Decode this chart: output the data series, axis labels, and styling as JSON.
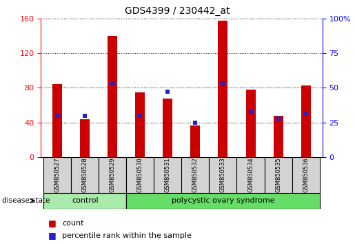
{
  "title": "GDS4399 / 230442_at",
  "samples": [
    "GSM850527",
    "GSM850528",
    "GSM850529",
    "GSM850530",
    "GSM850531",
    "GSM850532",
    "GSM850533",
    "GSM850534",
    "GSM850535",
    "GSM850536"
  ],
  "count_values": [
    84,
    44,
    140,
    75,
    68,
    37,
    157,
    78,
    48,
    83
  ],
  "percentile_values": [
    30,
    30,
    53,
    30,
    47,
    25,
    53,
    33,
    28,
    32
  ],
  "ylim_left": [
    0,
    160
  ],
  "ylim_right": [
    0,
    100
  ],
  "yticks_left": [
    0,
    40,
    80,
    120,
    160
  ],
  "yticks_right": [
    0,
    25,
    50,
    75,
    100
  ],
  "bar_color": "#cc0000",
  "dot_color": "#2222cc",
  "control_count": 3,
  "control_label": "control",
  "pcos_label": "polycystic ovary syndrome",
  "disease_state_label": "disease state",
  "control_color": "#aaeaaa",
  "pcos_color": "#66dd66",
  "sample_bg_color": "#d3d3d3",
  "legend_count_label": "count",
  "legend_percentile_label": "percentile rank within the sample",
  "grid_color": "#000000",
  "bar_width": 0.35
}
